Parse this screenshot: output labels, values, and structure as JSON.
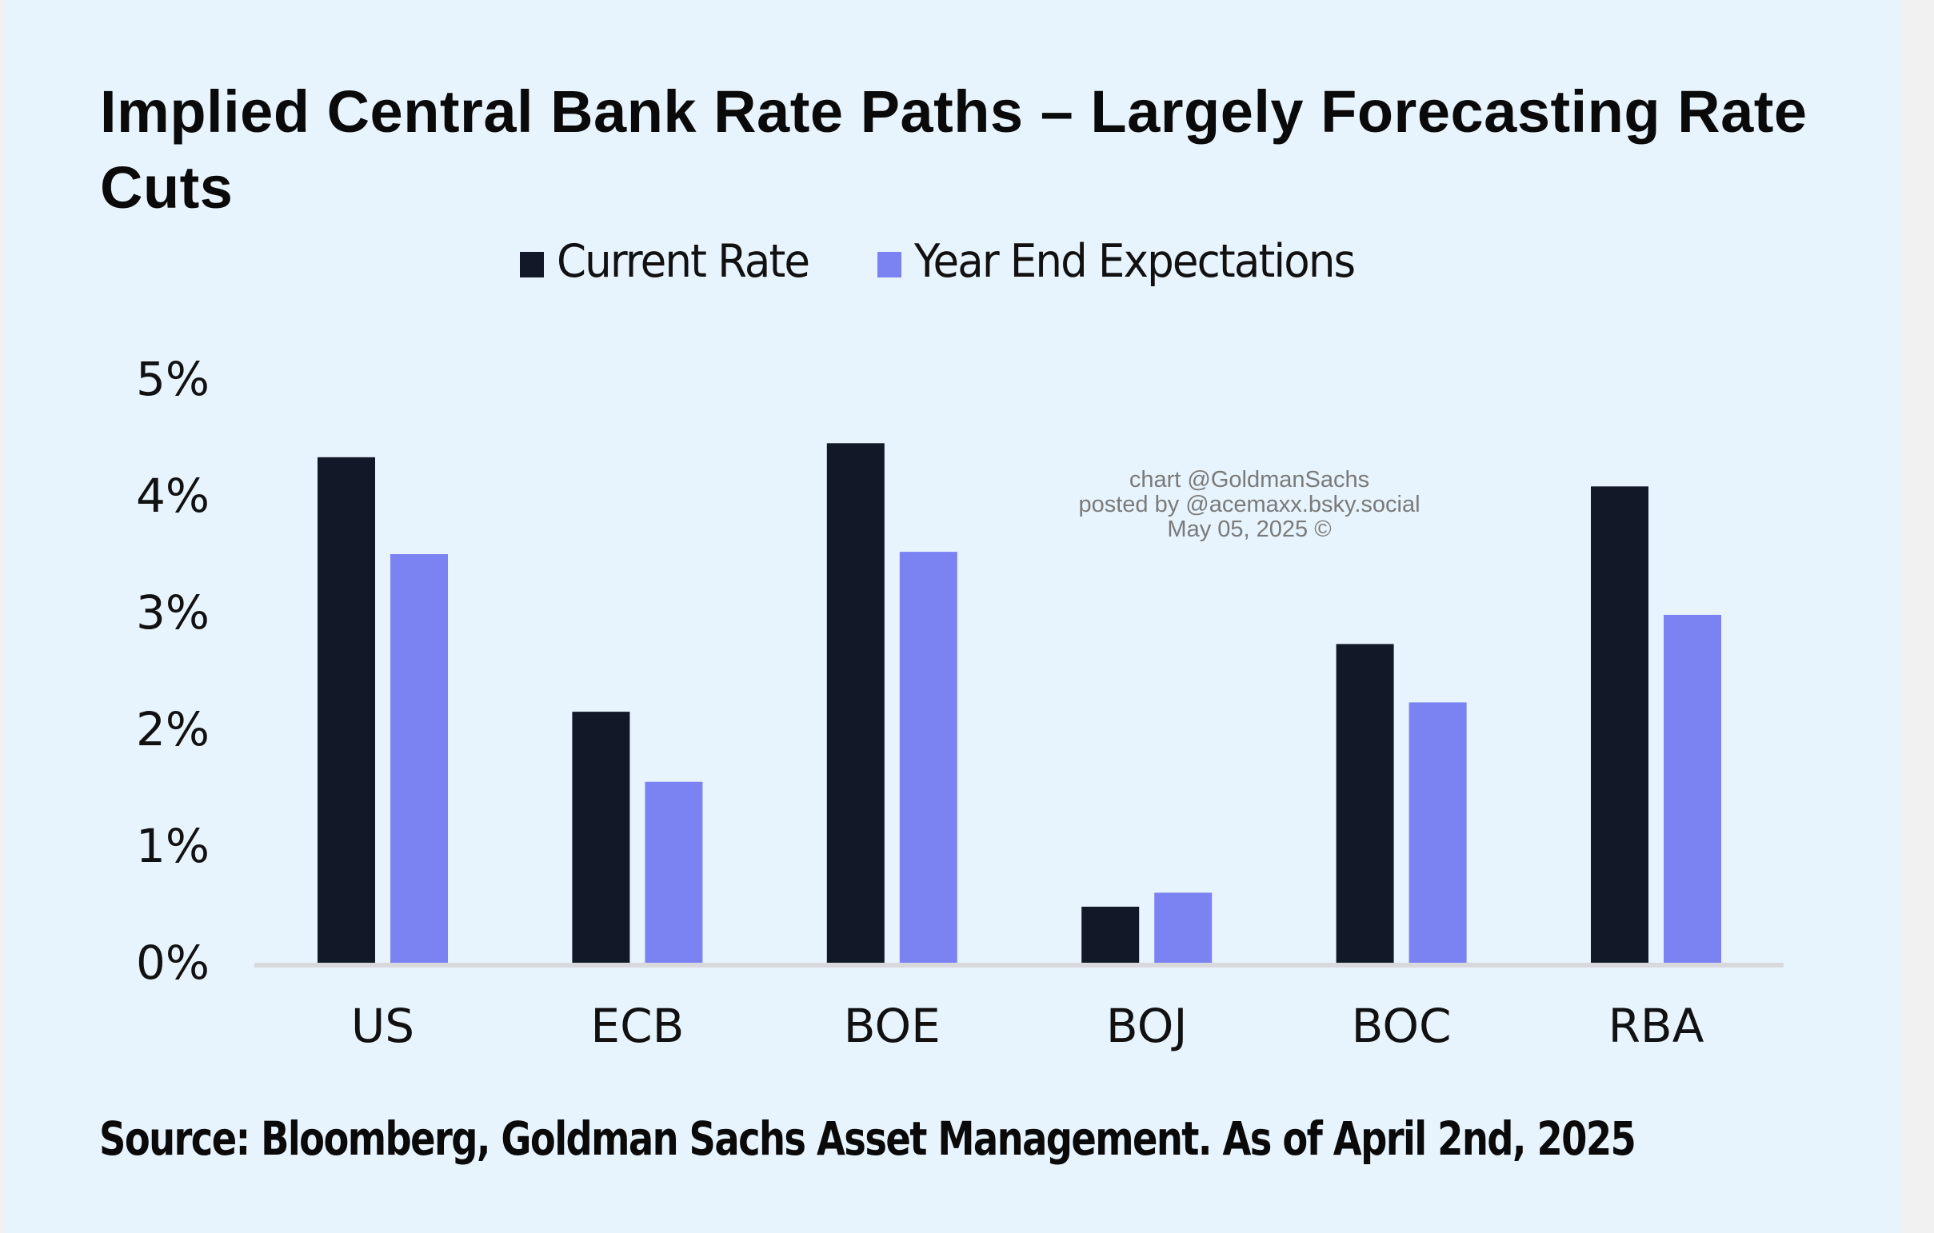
{
  "title": "Implied Central Bank Rate Paths – Largely Forecasting Rate Cuts",
  "watermark": {
    "line1": "chart @GoldmanSachs",
    "line2": "posted by @acemaxx.bsky.social",
    "line3": "May 05, 2025 ©"
  },
  "source": "Source: Bloomberg, Goldman Sachs Asset Management. As of April 2nd, 2025",
  "colors": {
    "current_rate": "#111827",
    "year_end": "#7b83f2",
    "axis_line": "#d9d9dd",
    "background": "#e8f4fd"
  },
  "chart_data": {
    "type": "bar",
    "title": "Implied Central Bank Rate Paths – Largely Forecasting Rate Cuts",
    "xlabel": "",
    "ylabel": "",
    "categories": [
      "US",
      "ECB",
      "BOE",
      "BOJ",
      "BOC",
      "RBA"
    ],
    "series": [
      {
        "name": "Current Rate",
        "values": [
          4.33,
          2.15,
          4.45,
          0.48,
          2.73,
          4.08
        ]
      },
      {
        "name": "Year End Expectations",
        "values": [
          3.5,
          1.55,
          3.52,
          0.6,
          2.23,
          2.98
        ]
      }
    ],
    "ylim": [
      0,
      5
    ],
    "yticks": [
      0,
      1,
      2,
      3,
      4,
      5
    ],
    "ytick_labels": [
      "0%",
      "1%",
      "2%",
      "3%",
      "4%",
      "5%"
    ],
    "grid": false,
    "legend": {
      "position": "top-center",
      "entries": [
        "Current Rate",
        "Year End Expectations"
      ]
    },
    "units": "%"
  }
}
